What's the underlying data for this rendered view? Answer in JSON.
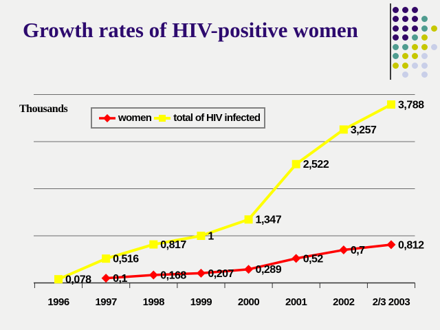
{
  "slide": {
    "title": "Growth rates of HIV-positive women",
    "title_color": "#2D0A6E",
    "background_color": "#F1F1F0"
  },
  "decoration": {
    "separator_line_color": "#3a3a3a",
    "dot_colors": {
      "purple": "#330866",
      "teal": "#4F9C8F",
      "yellow": "#C6C700",
      "lavender": "#C9CFE8"
    },
    "dot_pattern": [
      [
        "purple",
        "purple",
        "purple",
        null,
        null
      ],
      [
        "purple",
        "purple",
        "purple",
        "teal",
        null
      ],
      [
        "purple",
        "purple",
        "purple",
        "teal",
        "yellow"
      ],
      [
        "purple",
        "purple",
        "teal",
        "yellow",
        null
      ],
      [
        "teal",
        "teal",
        "yellow",
        "yellow",
        "lavender"
      ],
      [
        "teal",
        "yellow",
        "yellow",
        "lavender",
        null
      ],
      [
        "yellow",
        "yellow",
        "lavender",
        "lavender",
        null
      ],
      [
        null,
        "lavender",
        null,
        "lavender",
        null
      ]
    ]
  },
  "chart_data": {
    "type": "line",
    "title": "",
    "xlabel": "",
    "ylabel": "Thousands",
    "categories": [
      "1996",
      "1997",
      "1998",
      "1999",
      "2000",
      "2001",
      "2002",
      "2/3 2003"
    ],
    "series": [
      {
        "name": "women",
        "color": "#FF0000",
        "marker": "diamond",
        "line_width": 3.5,
        "values": [
          null,
          0.1,
          0.168,
          0.207,
          0.289,
          0.52,
          0.7,
          0.812
        ],
        "point_labels": [
          "",
          "0,1",
          "0,168",
          "0,207",
          "0,289",
          "0,52",
          "0,7",
          "0,812"
        ]
      },
      {
        "name": "total of HIV infected",
        "color": "#FFFF00",
        "marker": "square",
        "line_width": 4,
        "values": [
          0.078,
          0.516,
          0.817,
          1,
          1.347,
          2.522,
          3.257,
          3.788
        ],
        "point_labels": [
          "0,078",
          "0,516",
          "0,817",
          "1",
          "1,347",
          "2,522",
          "3,257",
          "3,788"
        ]
      }
    ],
    "ylim": [
      0,
      4
    ],
    "gridline_values": [
      1,
      2,
      3,
      4
    ],
    "grid": true,
    "legend_position": "inside-top-left",
    "axis_color": "#333333",
    "gridline_color": "#6b6b6b",
    "label_color": "#000000"
  }
}
